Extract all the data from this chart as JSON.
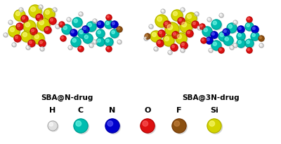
{
  "title_left": "SBA@N-drug",
  "title_right": "SBA@3N-drug",
  "legend_labels": [
    "H",
    "C",
    "N",
    "O",
    "F",
    "Si"
  ],
  "legend_colors": [
    "#e0e0e0",
    "#00bdb0",
    "#0000cc",
    "#dd1010",
    "#8B5010",
    "#d4d400"
  ],
  "legend_edge_colors": [
    "#909090",
    "#008880",
    "#000088",
    "#990000",
    "#6B3008",
    "#999900"
  ],
  "legend_highlight": [
    "#ffffff",
    "#80ffee",
    "#6666ff",
    "#ff6666",
    "#cc8844",
    "#ffff80"
  ],
  "background_color": "#ffffff",
  "label_fontsize": 7.5,
  "legend_fontsize": 8.0,
  "fig_width": 4.0,
  "fig_height": 2.06,
  "dpi": 100,
  "left_atoms": [
    [
      28,
      22,
      8,
      "Si"
    ],
    [
      50,
      16,
      9,
      "Si"
    ],
    [
      70,
      20,
      8,
      "Si"
    ],
    [
      42,
      38,
      9,
      "Si"
    ],
    [
      62,
      35,
      9,
      "Si"
    ],
    [
      20,
      45,
      8,
      "Si"
    ],
    [
      38,
      52,
      8,
      "Si"
    ],
    [
      55,
      55,
      8,
      "Si"
    ],
    [
      35,
      27,
      5,
      "O"
    ],
    [
      56,
      25,
      5,
      "O"
    ],
    [
      75,
      30,
      5,
      "O"
    ],
    [
      28,
      38,
      5,
      "O"
    ],
    [
      48,
      45,
      5,
      "O"
    ],
    [
      68,
      43,
      5,
      "O"
    ],
    [
      25,
      55,
      5,
      "O"
    ],
    [
      45,
      62,
      5,
      "O"
    ],
    [
      60,
      62,
      5,
      "O"
    ],
    [
      15,
      32,
      3,
      "H"
    ],
    [
      8,
      50,
      3,
      "H"
    ],
    [
      30,
      14,
      3,
      "H"
    ],
    [
      58,
      10,
      3,
      "H"
    ],
    [
      78,
      14,
      3,
      "H"
    ],
    [
      82,
      38,
      3,
      "H"
    ],
    [
      20,
      64,
      3,
      "H"
    ],
    [
      40,
      68,
      3,
      "H"
    ],
    [
      60,
      70,
      3,
      "H"
    ],
    [
      95,
      42,
      7,
      "C"
    ],
    [
      110,
      32,
      7,
      "C"
    ],
    [
      118,
      48,
      7,
      "C"
    ],
    [
      108,
      60,
      7,
      "C"
    ],
    [
      130,
      38,
      7,
      "C"
    ],
    [
      125,
      55,
      7,
      "C"
    ],
    [
      105,
      47,
      5,
      "N"
    ],
    [
      122,
      42,
      5,
      "N"
    ],
    [
      88,
      35,
      4,
      "O"
    ],
    [
      90,
      55,
      4,
      "O"
    ],
    [
      115,
      70,
      4,
      "O"
    ],
    [
      98,
      28,
      3,
      "H"
    ],
    [
      135,
      30,
      3,
      "H"
    ],
    [
      130,
      65,
      3,
      "H"
    ],
    [
      100,
      68,
      3,
      "H"
    ],
    [
      115,
      20,
      3,
      "H"
    ],
    [
      155,
      35,
      6,
      "C"
    ],
    [
      163,
      48,
      6,
      "C"
    ],
    [
      155,
      60,
      6,
      "C"
    ],
    [
      143,
      60,
      6,
      "C"
    ],
    [
      143,
      48,
      6,
      "C"
    ],
    [
      155,
      48,
      0,
      "C"
    ],
    [
      163,
      35,
      5,
      "N"
    ],
    [
      143,
      35,
      5,
      "N"
    ],
    [
      155,
      25,
      4,
      "O"
    ],
    [
      155,
      70,
      4,
      "O"
    ],
    [
      170,
      42,
      4,
      "F"
    ],
    [
      170,
      60,
      3,
      "H"
    ],
    [
      135,
      60,
      3,
      "H"
    ]
  ],
  "right_atoms": [
    [
      230,
      30,
      9,
      "Si"
    ],
    [
      252,
      22,
      8,
      "Si"
    ],
    [
      272,
      26,
      8,
      "Si"
    ],
    [
      245,
      42,
      10,
      "Si"
    ],
    [
      265,
      38,
      9,
      "Si"
    ],
    [
      222,
      52,
      8,
      "Si"
    ],
    [
      240,
      58,
      8,
      "Si"
    ],
    [
      258,
      55,
      8,
      "Si"
    ],
    [
      238,
      35,
      5,
      "O"
    ],
    [
      258,
      30,
      5,
      "O"
    ],
    [
      278,
      35,
      5,
      "O"
    ],
    [
      230,
      48,
      5,
      "O"
    ],
    [
      250,
      50,
      5,
      "O"
    ],
    [
      270,
      48,
      5,
      "O"
    ],
    [
      228,
      62,
      5,
      "O"
    ],
    [
      248,
      68,
      5,
      "O"
    ],
    [
      262,
      65,
      5,
      "O"
    ],
    [
      215,
      38,
      3,
      "H"
    ],
    [
      208,
      55,
      3,
      "H"
    ],
    [
      232,
      16,
      3,
      "H"
    ],
    [
      260,
      14,
      3,
      "H"
    ],
    [
      280,
      20,
      3,
      "H"
    ],
    [
      284,
      40,
      3,
      "H"
    ],
    [
      222,
      70,
      3,
      "H"
    ],
    [
      242,
      75,
      3,
      "H"
    ],
    [
      260,
      72,
      3,
      "H"
    ],
    [
      295,
      45,
      7,
      "C"
    ],
    [
      308,
      35,
      7,
      "C"
    ],
    [
      318,
      52,
      7,
      "C"
    ],
    [
      308,
      65,
      7,
      "C"
    ],
    [
      330,
      40,
      7,
      "C"
    ],
    [
      325,
      58,
      7,
      "C"
    ],
    [
      305,
      50,
      5,
      "N"
    ],
    [
      322,
      46,
      5,
      "N"
    ],
    [
      298,
      58,
      5,
      "N"
    ],
    [
      288,
      38,
      4,
      "O"
    ],
    [
      290,
      58,
      4,
      "O"
    ],
    [
      315,
      72,
      4,
      "O"
    ],
    [
      298,
      28,
      3,
      "H"
    ],
    [
      335,
      32,
      3,
      "H"
    ],
    [
      330,
      68,
      3,
      "H"
    ],
    [
      300,
      72,
      3,
      "H"
    ],
    [
      315,
      22,
      3,
      "H"
    ],
    [
      355,
      38,
      6,
      "C"
    ],
    [
      363,
      52,
      6,
      "C"
    ],
    [
      355,
      62,
      6,
      "C"
    ],
    [
      343,
      62,
      6,
      "C"
    ],
    [
      343,
      52,
      6,
      "C"
    ],
    [
      363,
      42,
      5,
      "N"
    ],
    [
      343,
      42,
      5,
      "N"
    ],
    [
      355,
      28,
      4,
      "O"
    ],
    [
      355,
      72,
      4,
      "O"
    ],
    [
      372,
      55,
      4,
      "F"
    ],
    [
      372,
      65,
      3,
      "H"
    ],
    [
      335,
      65,
      3,
      "H"
    ],
    [
      210,
      52,
      4,
      "F"
    ]
  ]
}
